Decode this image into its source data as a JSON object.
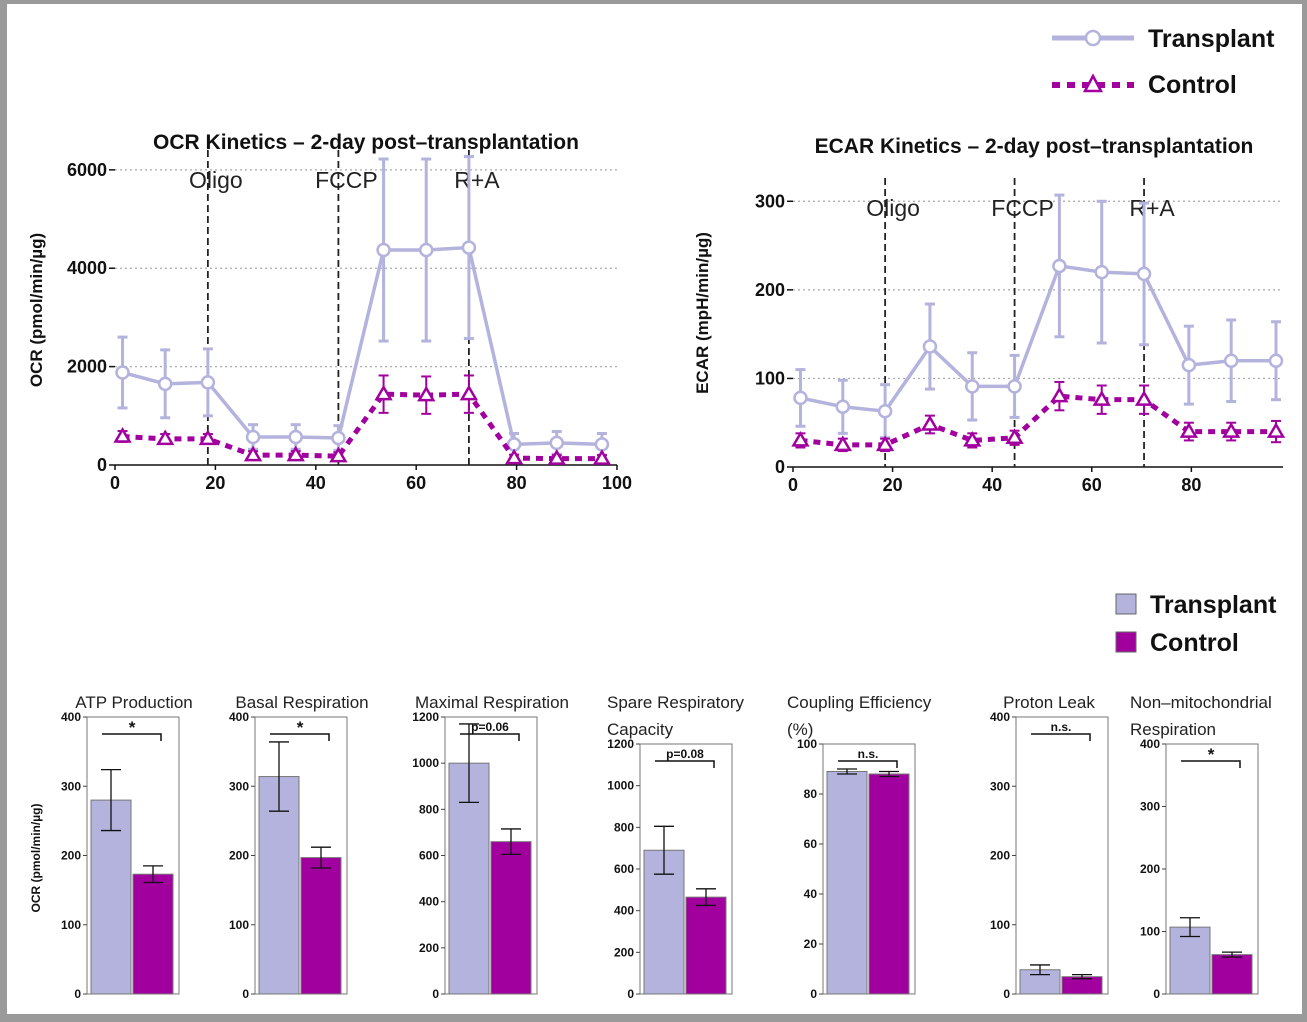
{
  "colors": {
    "transplant": "#b3b3dd",
    "control": "#a1009f",
    "grid": "#aaaaaa",
    "axis": "#111111"
  },
  "legend_lines": {
    "transplant": "Transplant",
    "control": "Control"
  },
  "legend_bars": {
    "transplant": "Transplant",
    "control": "Control"
  },
  "chart_data": [
    {
      "type": "line",
      "title": "OCR Kinetics – 2-day post–transplantation",
      "xlabel": "",
      "ylabel": "OCR (pmol/min/µg)",
      "xlim": [
        0,
        100
      ],
      "ylim": [
        0,
        6200
      ],
      "xticks": [
        0,
        20,
        40,
        60,
        80,
        100
      ],
      "yticks": [
        0,
        2000,
        4000,
        6000
      ],
      "grid": "horizontal dotted",
      "injections": [
        {
          "label": "Oligo",
          "x": 18.5
        },
        {
          "label": "FCCP",
          "x": 44.5
        },
        {
          "label": "R+A",
          "x": 70.5
        }
      ],
      "x": [
        1.5,
        10,
        18.5,
        27.5,
        36,
        44.5,
        53.5,
        62,
        70.5,
        79.5,
        88,
        97
      ],
      "series": [
        {
          "name": "Transplant",
          "values": [
            1880,
            1650,
            1680,
            570,
            570,
            550,
            4370,
            4370,
            4420,
            420,
            450,
            420
          ],
          "err": [
            720,
            690,
            680,
            250,
            250,
            250,
            1850,
            1850,
            1850,
            220,
            230,
            220
          ]
        },
        {
          "name": "Control",
          "values": [
            580,
            530,
            530,
            200,
            200,
            180,
            1440,
            1420,
            1440,
            140,
            130,
            130
          ],
          "err": [
            110,
            100,
            100,
            80,
            80,
            80,
            380,
            380,
            380,
            70,
            70,
            70
          ]
        }
      ]
    },
    {
      "type": "line",
      "title": "ECAR Kinetics – 2-day post–transplantation",
      "xlabel": "",
      "ylabel": "ECAR (mpH/min/µg)",
      "xlim": [
        0,
        97
      ],
      "ylim": [
        0,
        315
      ],
      "xticks": [
        0,
        20,
        40,
        60,
        80
      ],
      "yticks": [
        0,
        100,
        200,
        300
      ],
      "grid": "horizontal dotted",
      "injections": [
        {
          "label": "Oligo",
          "x": 18.5
        },
        {
          "label": "FCCP",
          "x": 44.5
        },
        {
          "label": "R+A",
          "x": 70.5
        }
      ],
      "x": [
        1.5,
        10,
        18.5,
        27.5,
        36,
        44.5,
        53.5,
        62,
        70.5,
        79.5,
        88,
        97
      ],
      "series": [
        {
          "name": "Transplant",
          "values": [
            78,
            68,
            63,
            136,
            91,
            91,
            227,
            220,
            218,
            115,
            120,
            120
          ],
          "err": [
            32,
            30,
            30,
            48,
            38,
            35,
            80,
            80,
            80,
            44,
            46,
            44
          ]
        },
        {
          "name": "Control",
          "values": [
            30,
            25,
            25,
            48,
            30,
            33,
            80,
            76,
            76,
            40,
            40,
            40
          ],
          "err": [
            8,
            7,
            7,
            10,
            8,
            8,
            16,
            16,
            16,
            10,
            10,
            12
          ]
        }
      ]
    },
    {
      "type": "bar",
      "title": "ATP Production",
      "ylabel": "OCR (pmol/min/µg)",
      "categories": [
        "Transplant",
        "Control"
      ],
      "values": [
        280,
        173
      ],
      "err": [
        44,
        12
      ],
      "ylim": [
        0,
        400
      ],
      "yticks": [
        0,
        100,
        200,
        300,
        400
      ],
      "significance": "*"
    },
    {
      "type": "bar",
      "title": "Basal Respiration",
      "categories": [
        "Transplant",
        "Control"
      ],
      "values": [
        314,
        197
      ],
      "err": [
        50,
        15
      ],
      "ylim": [
        0,
        400
      ],
      "yticks": [
        0,
        100,
        200,
        300,
        400
      ],
      "significance": "*"
    },
    {
      "type": "bar",
      "title": "Maximal Respiration",
      "categories": [
        "Transplant",
        "Control"
      ],
      "values": [
        1000,
        660
      ],
      "err": [
        170,
        55
      ],
      "ylim": [
        0,
        1200
      ],
      "yticks": [
        0,
        200,
        400,
        600,
        800,
        1000,
        1200
      ],
      "significance": "p=0.06"
    },
    {
      "type": "bar",
      "title": "Spare Respiratory Capacity",
      "categories": [
        "Transplant",
        "Control"
      ],
      "values": [
        690,
        465
      ],
      "err": [
        115,
        40
      ],
      "ylim": [
        0,
        1200
      ],
      "yticks": [
        0,
        200,
        400,
        600,
        800,
        1000,
        1200
      ],
      "significance": "p=0.08"
    },
    {
      "type": "bar",
      "title": "Coupling Efficiency (%)",
      "categories": [
        "Transplant",
        "Control"
      ],
      "values": [
        89,
        88
      ],
      "err": [
        1,
        1
      ],
      "ylim": [
        0,
        100
      ],
      "yticks": [
        0,
        20,
        40,
        60,
        80,
        100
      ],
      "significance": "n.s."
    },
    {
      "type": "bar",
      "title": "Proton Leak",
      "categories": [
        "Transplant",
        "Control"
      ],
      "values": [
        35,
        25
      ],
      "err": [
        7,
        3
      ],
      "ylim": [
        0,
        400
      ],
      "yticks": [
        0,
        100,
        200,
        300,
        400
      ],
      "significance": "n.s."
    },
    {
      "type": "bar",
      "title": "Non–mitochondrial Respiration",
      "categories": [
        "Transplant",
        "Control"
      ],
      "values": [
        107,
        63
      ],
      "err": [
        15,
        4
      ],
      "ylim": [
        0,
        400
      ],
      "yticks": [
        0,
        100,
        200,
        300,
        400
      ],
      "significance": "*"
    }
  ]
}
